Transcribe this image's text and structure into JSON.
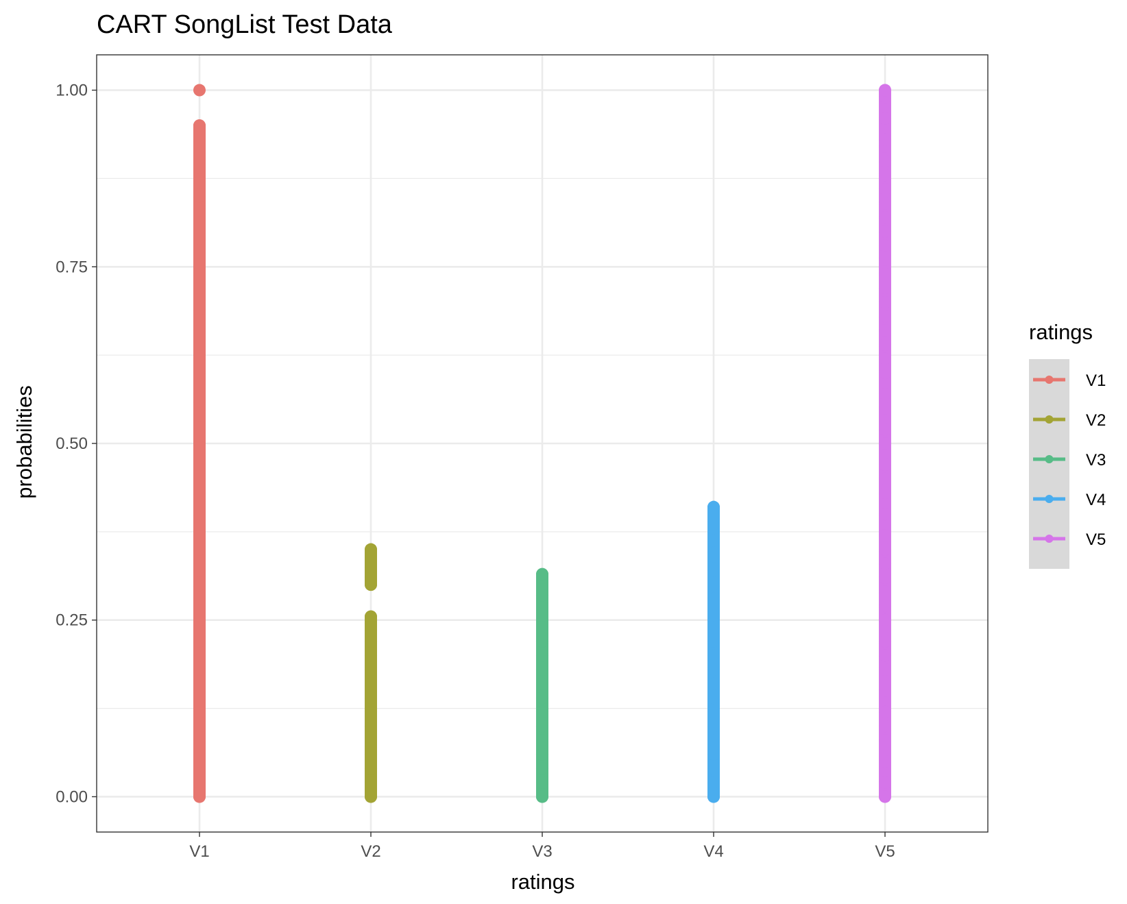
{
  "chart_data": {
    "type": "scatter",
    "title": "CART SongList Test Data",
    "xlabel": "ratings",
    "ylabel": "probabilities",
    "categories": [
      "V1",
      "V2",
      "V3",
      "V4",
      "V5"
    ],
    "y_ticks": [
      "0.00",
      "0.25",
      "0.50",
      "0.75",
      "1.00"
    ],
    "y_tick_values": [
      0,
      0.25,
      0.5,
      0.75,
      1.0
    ],
    "ylim": [
      -0.05,
      1.05
    ],
    "grid": true,
    "legend": {
      "title": "ratings",
      "position": "right",
      "items": [
        "V1",
        "V2",
        "V3",
        "V4",
        "V5"
      ]
    },
    "series": [
      {
        "name": "V1",
        "color": "#E7766F",
        "values": [
          0,
          0.02,
          0.05,
          0.08,
          0.1,
          0.12,
          0.15,
          0.18,
          0.2,
          0.22,
          0.25,
          0.28,
          0.3,
          0.32,
          0.33,
          0.35,
          0.37,
          0.38,
          0.4,
          0.42,
          0.43,
          0.45,
          0.47,
          0.48,
          0.49,
          0.51,
          0.52,
          0.54,
          0.56,
          0.58,
          0.6,
          0.62,
          0.64,
          0.65,
          0.66,
          0.675,
          0.69,
          0.7,
          0.72,
          0.74,
          0.75,
          0.77,
          0.79,
          0.81,
          0.83,
          0.85,
          0.87,
          0.89,
          0.91,
          0.93,
          0.945,
          0.95,
          1.0
        ]
      },
      {
        "name": "V2",
        "color": "#A3A435",
        "values": [
          0,
          0.02,
          0.04,
          0.06,
          0.08,
          0.1,
          0.12,
          0.14,
          0.16,
          0.18,
          0.2,
          0.22,
          0.235,
          0.245,
          0.255,
          0.3,
          0.31,
          0.325,
          0.34,
          0.35
        ]
      },
      {
        "name": "V3",
        "color": "#57BC87",
        "values": [
          0,
          0.02,
          0.04,
          0.06,
          0.08,
          0.1,
          0.12,
          0.14,
          0.16,
          0.18,
          0.2,
          0.22,
          0.24,
          0.26,
          0.275,
          0.285,
          0.31,
          0.315
        ]
      },
      {
        "name": "V4",
        "color": "#4AADEE",
        "values": [
          0,
          0.02,
          0.04,
          0.06,
          0.08,
          0.1,
          0.12,
          0.14,
          0.16,
          0.18,
          0.2,
          0.22,
          0.24,
          0.26,
          0.28,
          0.3,
          0.32,
          0.34,
          0.345,
          0.37,
          0.38,
          0.39,
          0.41
        ]
      },
      {
        "name": "V5",
        "color": "#D575E9",
        "values": [
          0,
          0.02,
          0.05,
          0.08,
          0.1,
          0.12,
          0.15,
          0.18,
          0.2,
          0.22,
          0.25,
          0.27,
          0.29,
          0.31,
          0.33,
          0.35,
          0.37,
          0.4,
          0.43,
          0.45,
          0.47,
          0.5,
          0.52,
          0.55,
          0.57,
          0.6,
          0.62,
          0.64,
          0.66,
          0.68,
          0.7,
          0.72,
          0.74,
          0.76,
          0.78,
          0.8,
          0.82,
          0.84,
          0.86,
          0.88,
          0.9,
          0.92,
          0.93,
          0.96,
          0.99,
          1.0
        ]
      }
    ]
  }
}
